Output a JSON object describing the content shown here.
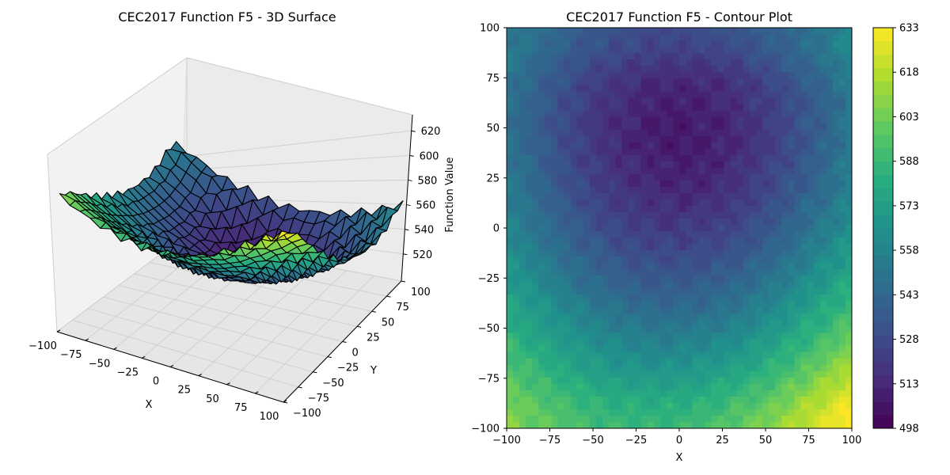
{
  "chart_data": [
    {
      "type": "surface3d",
      "title": "CEC2017 Function F5 - 3D Surface",
      "xlabel": "X",
      "ylabel": "Y",
      "zlabel": "Function Value",
      "xlim": [
        -100,
        100
      ],
      "ylim": [
        -100,
        100
      ],
      "zlim": [
        498,
        633
      ],
      "x_ticks": [
        -100,
        -75,
        -50,
        -25,
        0,
        25,
        50,
        75,
        100
      ],
      "y_ticks": [
        -100,
        -75,
        -50,
        -25,
        0,
        25,
        50,
        75,
        100
      ],
      "z_ticks": [
        520,
        540,
        560,
        580,
        600,
        620
      ],
      "grid": true,
      "colormap": "viridis"
    },
    {
      "type": "contour",
      "title": "CEC2017 Function F5 - Contour Plot",
      "xlabel": "X",
      "ylabel": "Y",
      "xlim": [
        -100,
        100
      ],
      "ylim": [
        -100,
        100
      ],
      "x_ticks": [
        -100,
        -75,
        -50,
        -25,
        0,
        25,
        50,
        75,
        100
      ],
      "y_ticks": [
        -100,
        -75,
        -50,
        -25,
        0,
        25,
        50,
        75,
        100
      ],
      "colorbar_ticks": [
        498,
        513,
        528,
        543,
        558,
        573,
        588,
        603,
        618,
        633
      ],
      "zlim": [
        498,
        633
      ],
      "colormap": "viridis",
      "field": {
        "x_step": 10,
        "y_step": 10,
        "x_values": [
          -100,
          -90,
          -80,
          -70,
          -60,
          -50,
          -40,
          -30,
          -20,
          -10,
          0,
          10,
          20,
          30,
          40,
          50,
          60,
          70,
          80,
          90,
          100
        ],
        "y_values": [
          100,
          90,
          80,
          70,
          60,
          50,
          40,
          30,
          20,
          10,
          0,
          -10,
          -20,
          -30,
          -40,
          -50,
          -60,
          -70,
          -80,
          -90,
          -100
        ],
        "z": [
          [
            552,
            548,
            546,
            540,
            538,
            534,
            534,
            531,
            530,
            529,
            530,
            530,
            532,
            533,
            536,
            539,
            542,
            546,
            550,
            555,
            561
          ],
          [
            555,
            551,
            546,
            541,
            536,
            533,
            530,
            528,
            526,
            525,
            525,
            526,
            527,
            529,
            532,
            536,
            540,
            545,
            550,
            556,
            562
          ],
          [
            553,
            547,
            541,
            536,
            531,
            527,
            524,
            521,
            519,
            518,
            517,
            518,
            520,
            522,
            525,
            529,
            534,
            539,
            544,
            550,
            557
          ],
          [
            550,
            544,
            538,
            532,
            527,
            523,
            519,
            516,
            514,
            512,
            512,
            512,
            514,
            517,
            520,
            524,
            529,
            534,
            540,
            547,
            554
          ],
          [
            549,
            543,
            537,
            531,
            526,
            521,
            517,
            514,
            511,
            510,
            509,
            510,
            512,
            514,
            518,
            522,
            527,
            532,
            538,
            545,
            552
          ],
          [
            549,
            543,
            536,
            530,
            525,
            520,
            516,
            513,
            510,
            509,
            508,
            509,
            511,
            513,
            517,
            521,
            526,
            532,
            538,
            545,
            552
          ],
          [
            550,
            544,
            537,
            531,
            526,
            521,
            517,
            513,
            511,
            509,
            508,
            509,
            511,
            514,
            517,
            521,
            527,
            532,
            539,
            546,
            553
          ],
          [
            552,
            545,
            539,
            533,
            527,
            522,
            518,
            515,
            512,
            511,
            510,
            511,
            512,
            515,
            519,
            523,
            528,
            534,
            541,
            548,
            555
          ],
          [
            554,
            548,
            541,
            535,
            530,
            525,
            521,
            518,
            515,
            513,
            513,
            513,
            515,
            518,
            522,
            526,
            531,
            537,
            543,
            550,
            557
          ],
          [
            557,
            551,
            544,
            538,
            533,
            528,
            524,
            521,
            518,
            517,
            516,
            517,
            519,
            521,
            525,
            530,
            535,
            541,
            547,
            554,
            561
          ],
          [
            561,
            554,
            548,
            542,
            537,
            532,
            528,
            525,
            523,
            521,
            521,
            522,
            523,
            526,
            530,
            534,
            539,
            545,
            551,
            558,
            565
          ],
          [
            565,
            558,
            552,
            546,
            541,
            536,
            532,
            529,
            527,
            526,
            526,
            527,
            528,
            531,
            535,
            539,
            544,
            550,
            557,
            563,
            570
          ],
          [
            569,
            563,
            557,
            551,
            546,
            541,
            537,
            535,
            533,
            532,
            532,
            533,
            534,
            537,
            541,
            545,
            550,
            556,
            563,
            569,
            576
          ],
          [
            574,
            568,
            562,
            556,
            551,
            547,
            543,
            540,
            538,
            538,
            538,
            539,
            541,
            543,
            547,
            552,
            557,
            563,
            569,
            576,
            583
          ],
          [
            579,
            573,
            567,
            562,
            557,
            553,
            549,
            547,
            545,
            544,
            545,
            545,
            547,
            550,
            554,
            559,
            564,
            570,
            576,
            583,
            590
          ],
          [
            584,
            578,
            573,
            568,
            563,
            559,
            556,
            554,
            552,
            551,
            552,
            553,
            555,
            558,
            562,
            566,
            572,
            578,
            584,
            591,
            598
          ],
          [
            590,
            584,
            579,
            574,
            570,
            566,
            563,
            561,
            560,
            559,
            560,
            561,
            563,
            566,
            570,
            575,
            580,
            586,
            593,
            599,
            606
          ],
          [
            595,
            590,
            585,
            580,
            576,
            573,
            570,
            568,
            567,
            567,
            567,
            569,
            571,
            574,
            578,
            583,
            589,
            595,
            601,
            608,
            615
          ],
          [
            601,
            596,
            591,
            587,
            583,
            580,
            578,
            576,
            575,
            575,
            576,
            577,
            580,
            583,
            587,
            592,
            598,
            604,
            611,
            618,
            624
          ],
          [
            606,
            601,
            597,
            593,
            590,
            587,
            585,
            584,
            583,
            583,
            584,
            586,
            588,
            592,
            596,
            601,
            607,
            613,
            620,
            627,
            632
          ],
          [
            608,
            604,
            600,
            596,
            593,
            591,
            589,
            588,
            588,
            588,
            589,
            591,
            594,
            597,
            602,
            607,
            613,
            619,
            625,
            630,
            633
          ]
        ],
        "ripple_period": 20,
        "ripple_amplitude": 9
      }
    }
  ]
}
